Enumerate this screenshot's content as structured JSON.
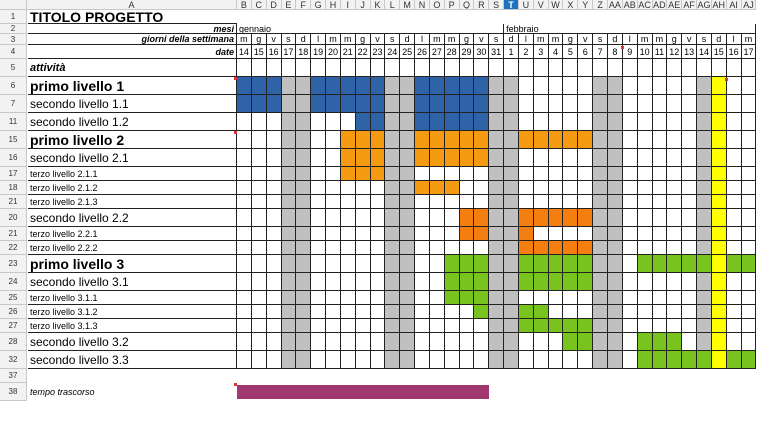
{
  "sheet": {
    "column_letters": [
      "A",
      "B",
      "C",
      "D",
      "E",
      "F",
      "G",
      "H",
      "I",
      "J",
      "K",
      "L",
      "M",
      "N",
      "O",
      "P",
      "Q",
      "R",
      "S",
      "T",
      "U",
      "V",
      "W",
      "X",
      "Y",
      "Z",
      "AA",
      "AB",
      "AC",
      "AD",
      "AE",
      "AF",
      "AG",
      "AH",
      "AI",
      "AJ"
    ],
    "selected_column": "T",
    "row_numbers": [
      "1",
      "2",
      "3",
      "4",
      "5",
      "6",
      "7",
      "11",
      "15",
      "16",
      "17",
      "18",
      "21",
      "20",
      "21",
      "22",
      "23",
      "24",
      "25",
      "26",
      "27",
      "28",
      "32",
      "37",
      "38"
    ]
  },
  "labels": {
    "title": "TITOLO PROGETTO",
    "months_label": "mesi",
    "weekdays_label": "giorni della settimana",
    "dates_label": "date",
    "activities_label": "attività",
    "elapsed_label": "tempo trascorso"
  },
  "months": [
    {
      "name": "gennaio",
      "start_day": 0
    },
    {
      "name": "febbraio",
      "start_day": 18
    }
  ],
  "weekdays": [
    "m",
    "g",
    "v",
    "s",
    "d",
    "l",
    "m",
    "m",
    "g",
    "v",
    "s",
    "d",
    "l",
    "m",
    "m",
    "g",
    "v",
    "s",
    "d",
    "l",
    "m",
    "m",
    "g",
    "v",
    "s",
    "d",
    "l",
    "m",
    "m",
    "g",
    "v",
    "s",
    "d",
    "l",
    "m"
  ],
  "dates": [
    "14",
    "15",
    "16",
    "17",
    "18",
    "19",
    "20",
    "21",
    "22",
    "23",
    "24",
    "25",
    "26",
    "27",
    "28",
    "29",
    "30",
    "31",
    "1",
    "2",
    "3",
    "4",
    "5",
    "6",
    "7",
    "8",
    "9",
    "10",
    "11",
    "12",
    "13",
    "14",
    "15",
    "16",
    "17"
  ],
  "weekend_days": [
    3,
    4,
    10,
    11,
    17,
    18,
    24,
    25,
    31,
    32
  ],
  "today_day": 32,
  "tasks": [
    {
      "label": "primo livello 1",
      "level": 1,
      "color": "#2e63a8",
      "segments": [
        [
          0,
          3
        ],
        [
          5,
          10
        ],
        [
          12,
          17
        ]
      ]
    },
    {
      "label": "secondo livello 1.1",
      "level": 2,
      "color": "#2e63a8",
      "segments": [
        [
          0,
          3
        ],
        [
          5,
          10
        ],
        [
          12,
          17
        ]
      ]
    },
    {
      "label": "secondo livello 1.2",
      "level": 2,
      "color": "#2e63a8",
      "segments": [
        [
          8,
          10
        ],
        [
          12,
          17
        ]
      ]
    },
    {
      "label": "primo livello 2",
      "level": 1,
      "color": "#f49b12",
      "segments": [
        [
          7,
          10
        ],
        [
          12,
          17
        ],
        [
          19,
          24
        ]
      ]
    },
    {
      "label": "secondo livello 2.1",
      "level": 2,
      "color": "#f49b12",
      "segments": [
        [
          7,
          10
        ],
        [
          12,
          17
        ]
      ]
    },
    {
      "label": "terzo livello 2.1.1",
      "level": 3,
      "color": "#f49b12",
      "segments": [
        [
          7,
          10
        ]
      ]
    },
    {
      "label": "terzo livello 2.1.2",
      "level": 3,
      "color": "#f49b12",
      "segments": [
        [
          12,
          15
        ]
      ]
    },
    {
      "label": "terzo livello 2.1.3",
      "level": 3,
      "color": "#f47f10",
      "segments": []
    },
    {
      "label": "secondo livello 2.2",
      "level": 2,
      "color": "#f47f10",
      "segments": [
        [
          15,
          17
        ],
        [
          19,
          24
        ]
      ]
    },
    {
      "label": "terzo livello 2.2.1",
      "level": 3,
      "color": "#f47f10",
      "segments": [
        [
          15,
          17
        ],
        [
          19,
          20
        ]
      ]
    },
    {
      "label": "terzo livello 2.2.2",
      "level": 3,
      "color": "#f47f10",
      "segments": [
        [
          19,
          24
        ]
      ]
    },
    {
      "label": "primo livello 3",
      "level": 1,
      "color": "#79c31e",
      "segments": [
        [
          14,
          17
        ],
        [
          19,
          24
        ],
        [
          27,
          32
        ],
        [
          33,
          35
        ]
      ]
    },
    {
      "label": "secondo livello 3.1",
      "level": 2,
      "color": "#79c31e",
      "segments": [
        [
          14,
          17
        ],
        [
          19,
          24
        ]
      ]
    },
    {
      "label": "terzo livello 3.1.1",
      "level": 3,
      "color": "#79c31e",
      "segments": [
        [
          14,
          17
        ]
      ]
    },
    {
      "label": "terzo livello 3.1.2",
      "level": 3,
      "color": "#79c31e",
      "segments": [
        [
          16,
          17
        ],
        [
          19,
          21
        ]
      ]
    },
    {
      "label": "terzo livello 3.1.3",
      "level": 3,
      "color": "#79c31e",
      "segments": [
        [
          19,
          24
        ]
      ]
    },
    {
      "label": "secondo livello 3.2",
      "level": 2,
      "color": "#79c31e",
      "segments": [
        [
          22,
          24
        ],
        [
          27,
          30
        ]
      ]
    },
    {
      "label": "secondo livello 3.3",
      "level": 2,
      "color": "#79c31e",
      "segments": [
        [
          27,
          32
        ],
        [
          33,
          35
        ]
      ]
    }
  ],
  "elapsed_bar": {
    "color": "#a0396e",
    "start_day": 0,
    "end_day": 17
  },
  "colors": {
    "weekend": "#c0c0c0",
    "today": "#ffff00",
    "grid": "#222222"
  }
}
